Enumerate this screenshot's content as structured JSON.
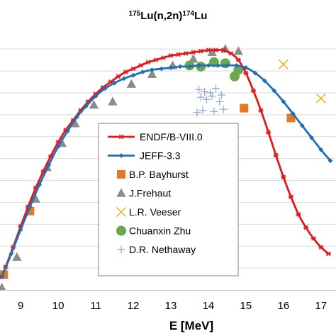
{
  "chart_data": {
    "type": "line",
    "title": {
      "mass1": "175",
      "reaction": "Lu(n,2n)",
      "mass2": "174",
      "element": "Lu"
    },
    "xlabel": "E [MeV]",
    "ylabel": "",
    "xlim": [
      8.45,
      17.4
    ],
    "ylim": [
      0,
      2.35
    ],
    "x_ticks": [
      9,
      10,
      11,
      12,
      13,
      14,
      15,
      16,
      17
    ],
    "x_tick_labels": [
      "9",
      "10",
      "11",
      "12",
      "13",
      "14",
      "15",
      "16",
      "17"
    ],
    "y_gridlines": [
      0.2,
      0.4,
      0.6,
      0.8,
      1.0,
      1.2,
      1.4,
      1.6,
      1.8,
      2.0,
      2.2
    ],
    "grid": true,
    "legend_position": "center",
    "series": [
      {
        "name": "ENDF/B-VIII.0",
        "kind": "line",
        "color": "#e0191c",
        "marker": "asterisk",
        "x": [
          8.5,
          8.6,
          8.8,
          9.0,
          9.2,
          9.4,
          9.6,
          9.8,
          10.0,
          10.2,
          10.4,
          10.6,
          10.8,
          11.0,
          11.2,
          11.4,
          11.6,
          11.8,
          12.0,
          12.2,
          12.4,
          12.6,
          12.8,
          13.0,
          13.2,
          13.4,
          13.6,
          13.8,
          14.0,
          14.2,
          14.4,
          14.6,
          14.8,
          15.0,
          15.2,
          15.4,
          15.6,
          15.8,
          16.0,
          16.2,
          16.4,
          16.6,
          16.8,
          17.0,
          17.2
        ],
        "y": [
          0.12,
          0.21,
          0.39,
          0.58,
          0.76,
          0.93,
          1.08,
          1.22,
          1.35,
          1.46,
          1.55,
          1.64,
          1.72,
          1.79,
          1.85,
          1.9,
          1.95,
          1.99,
          2.02,
          2.05,
          2.08,
          2.1,
          2.12,
          2.14,
          2.15,
          2.16,
          2.17,
          2.18,
          2.19,
          2.19,
          2.19,
          2.16,
          2.1,
          1.98,
          1.82,
          1.64,
          1.44,
          1.23,
          1.03,
          0.85,
          0.69,
          0.57,
          0.47,
          0.39,
          0.33
        ]
      },
      {
        "name": "JEFF-3.3",
        "kind": "line",
        "color": "#1f6fb5",
        "marker": "diamond",
        "x": [
          8.5,
          8.75,
          9.0,
          9.25,
          9.5,
          9.75,
          10.0,
          10.25,
          10.5,
          10.75,
          11.0,
          11.25,
          11.5,
          11.75,
          12.0,
          12.25,
          12.5,
          12.75,
          13.0,
          13.25,
          13.5,
          13.75,
          14.0,
          14.25,
          14.5,
          14.75,
          15.0,
          15.25,
          15.5,
          15.75,
          16.0,
          16.25,
          16.5,
          16.75,
          17.0,
          17.25
        ],
        "y": [
          0.12,
          0.33,
          0.55,
          0.76,
          0.96,
          1.14,
          1.31,
          1.45,
          1.58,
          1.68,
          1.77,
          1.84,
          1.89,
          1.93,
          1.96,
          1.99,
          2.01,
          2.02,
          2.03,
          2.04,
          2.04,
          2.05,
          2.05,
          2.05,
          2.05,
          2.05,
          2.03,
          1.98,
          1.91,
          1.82,
          1.72,
          1.61,
          1.5,
          1.39,
          1.28,
          1.18
        ]
      },
      {
        "name": "B.P. Bayhurst",
        "kind": "scatter",
        "color": "#e07b2a",
        "marker": "square",
        "x": [
          8.55,
          9.25,
          14.95,
          16.2
        ],
        "y": [
          0.14,
          0.72,
          1.66,
          1.57
        ]
      },
      {
        "name": "J.Frehaut",
        "kind": "scatter",
        "color": "#8c8c8c",
        "marker": "triangle",
        "x": [
          8.5,
          8.9,
          9.4,
          9.7,
          10.1,
          10.45,
          10.95,
          11.45,
          11.95,
          12.5,
          13.05,
          13.6,
          14.1,
          14.45,
          14.8
        ],
        "y": [
          0.02,
          0.3,
          0.83,
          1.12,
          1.34,
          1.52,
          1.69,
          1.72,
          1.88,
          1.97,
          2.05,
          2.11,
          2.17,
          2.2,
          2.18
        ]
      },
      {
        "name": "L.R. Veeser",
        "kind": "scatter",
        "color": "#e6b422",
        "marker": "x",
        "x": [
          16.0,
          17.0
        ],
        "y": [
          2.06,
          1.75
        ]
      },
      {
        "name": "Chuanxin Zhu",
        "kind": "scatter",
        "color": "#6aa84f",
        "marker": "circle",
        "x": [
          13.5,
          13.8,
          14.15,
          14.45,
          14.7,
          14.8
        ],
        "y": [
          2.05,
          2.04,
          2.08,
          2.07,
          1.95,
          2.01
        ]
      },
      {
        "name": "D.R. Nethaway",
        "kind": "scatter",
        "color": "#8ea4d2",
        "marker": "plus",
        "x": [
          13.75,
          13.9,
          14.05,
          14.2,
          14.35,
          13.8,
          13.95,
          14.1,
          14.3,
          13.7,
          13.85,
          14.15,
          14.4
        ],
        "y": [
          1.83,
          1.81,
          1.8,
          1.84,
          1.78,
          1.76,
          1.74,
          1.77,
          1.72,
          1.62,
          1.64,
          1.63,
          1.65
        ]
      }
    ]
  }
}
